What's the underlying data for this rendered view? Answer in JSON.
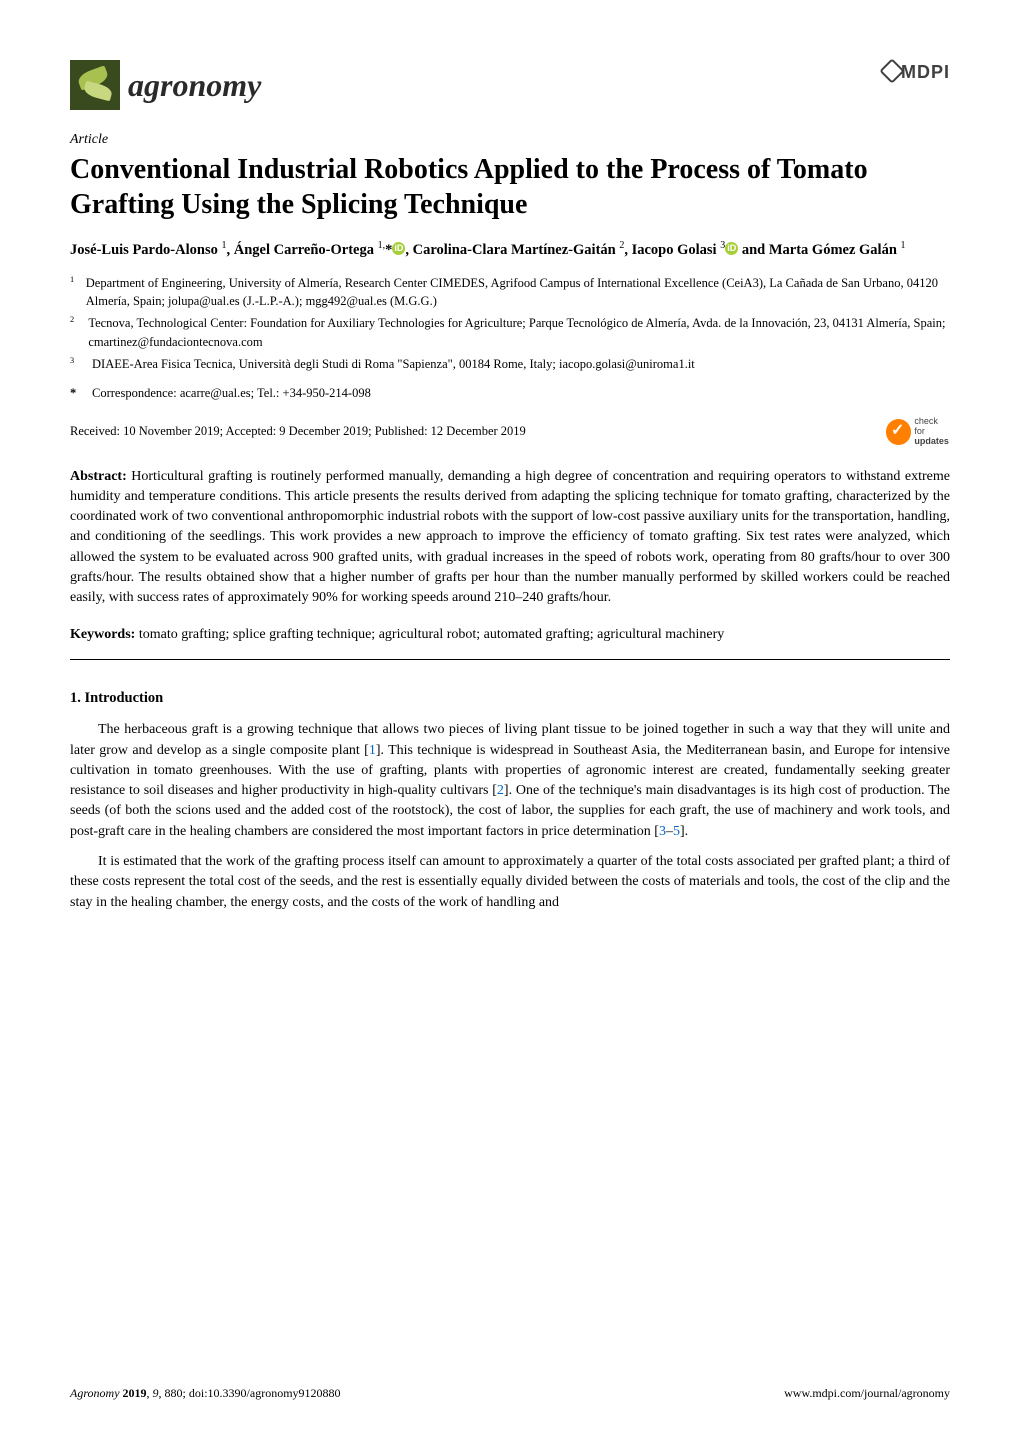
{
  "journal": {
    "name": "agronomy",
    "publisher": "MDPI"
  },
  "article_type": "Article",
  "title": "Conventional Industrial Robotics Applied to the Process of Tomato Grafting Using the Splicing Technique",
  "authors_html": "José-Luis Pardo-Alonso <sup>1</sup>, Ángel Carreño-Ortega <sup>1,</sup>*<span class='orcid'>iD</span>, Carolina-Clara Martínez-Gaitán <sup>2</sup>, Iacopo Golasi <sup>3</sup><span class='orcid'>iD</span> and Marta Gómez Galán <sup>1</sup>",
  "affiliations": [
    {
      "num": "1",
      "text": "Department of Engineering, University of Almería, Research Center CIMEDES, Agrifood Campus of International Excellence (CeiA3), La Cañada de San Urbano, 04120 Almería, Spain; jolupa@ual.es (J.-L.P.-A.); mgg492@ual.es (M.G.G.)"
    },
    {
      "num": "2",
      "text": "Tecnova, Technological Center: Foundation for Auxiliary Technologies for Agriculture; Parque Tecnológico de Almería, Avda. de la Innovación, 23, 04131 Almería, Spain; cmartinez@fundaciontecnova.com"
    },
    {
      "num": "3",
      "text": "DIAEE-Area Fisica Tecnica, Università degli Studi di Roma \"Sapienza\", 00184 Rome, Italy; iacopo.golasi@uniroma1.it"
    }
  ],
  "correspondence": "Correspondence: acarre@ual.es; Tel.: +34-950-214-098",
  "dates": "Received: 10 November 2019; Accepted: 9 December 2019; Published: 12 December 2019",
  "check_updates": {
    "line1": "check for",
    "line2": "updates"
  },
  "abstract_label": "Abstract:",
  "abstract_text": " Horticultural grafting is routinely performed manually, demanding a high degree of concentration and requiring operators to withstand extreme humidity and temperature conditions. This article presents the results derived from adapting the splicing technique for tomato grafting, characterized by the coordinated work of two conventional anthropomorphic industrial robots with the support of low-cost passive auxiliary units for the transportation, handling, and conditioning of the seedlings. This work provides a new approach to improve the efficiency of tomato grafting. Six test rates were analyzed, which allowed the system to be evaluated across 900 grafted units, with gradual increases in the speed of robots work, operating from 80 grafts/hour to over 300 grafts/hour. The results obtained show that a higher number of grafts per hour than the number manually performed by skilled workers could be reached easily, with success rates of approximately 90% for working speeds around 210–240 grafts/hour.",
  "keywords_label": "Keywords:",
  "keywords_text": " tomato grafting; splice grafting technique; agricultural robot; automated grafting; agricultural machinery",
  "section1_heading": "1. Introduction",
  "para1_html": "The herbaceous graft is a growing technique that allows two pieces of living plant tissue to be joined together in such a way that they will unite and later grow and develop as a single composite plant [<span class='cite'>1</span>]. This technique is widespread in Southeast Asia, the Mediterranean basin, and Europe for intensive cultivation in tomato greenhouses. With the use of grafting, plants with properties of agronomic interest are created, fundamentally seeking greater resistance to soil diseases and higher productivity in high-quality cultivars [<span class='cite'>2</span>]. One of the technique's main disadvantages is its high cost of production. The seeds (of both the scions used and the added cost of the rootstock), the cost of labor, the supplies for each graft, the use of machinery and work tools, and post-graft care in the healing chambers are considered the most important factors in price determination [<span class='cite'>3</span>–<span class='cite'>5</span>].",
  "para2_html": "It is estimated that the work of the grafting process itself can amount to approximately a quarter of the total costs associated per grafted plant; a third of these costs represent the total cost of the seeds, and the rest is essentially equally divided between the costs of materials and tools, the cost of the clip and the stay in the healing chamber, the energy costs, and the costs of the work of handling and",
  "footer": {
    "left_italic": "Agronomy ",
    "left_rest": "2019, 9, 880; doi:10.3390/agronomy9120880",
    "right": "www.mdpi.com/journal/agronomy"
  },
  "colors": {
    "orcid_green": "#a6ce39",
    "cite_blue": "#0066cc",
    "check_orange": "#ff7f00",
    "logo_bg": "#3a4a1f"
  }
}
